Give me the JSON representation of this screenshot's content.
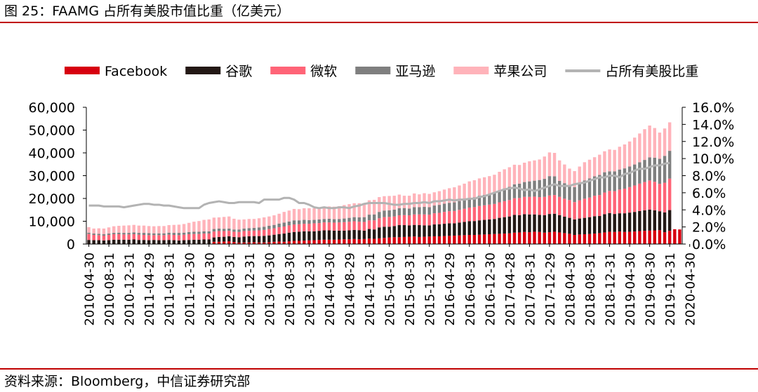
{
  "figure": {
    "title": "图 25：FAAMG 占所有美股市值比重（亿美元）",
    "source": "资料来源：Bloomberg，中信证券研究部"
  },
  "colors": {
    "facebook": "#d7000f",
    "google": "#231815",
    "microsoft": "#ff6477",
    "amazon": "#7f7f7f",
    "apple": "#ffb3ba",
    "share_line": "#b3b3b3",
    "rule": "#c00000"
  },
  "chart_data": {
    "type": "bar",
    "stacked": true,
    "title": "FAAMG 占所有美股市值比重（亿美元）",
    "xlabel": "",
    "ylabel": "",
    "ylim": [
      0,
      60000
    ],
    "y2lim": [
      0,
      0.16
    ],
    "y_ticks": [
      "0",
      "10,000",
      "20,000",
      "30,000",
      "40,000",
      "50,000",
      "60,000"
    ],
    "y2_ticks": [
      "0.0%",
      "2.0%",
      "4.0%",
      "6.0%",
      "8.0%",
      "10.0%",
      "12.0%",
      "14.0%",
      "16.0%"
    ],
    "x_tick_labels": [
      "2010-04-30",
      "2010-08-31",
      "2010-12-31",
      "2011-04-29",
      "2011-08-31",
      "2011-12-30",
      "2012-04-30",
      "2012-08-31",
      "2012-12-31",
      "2013-04-30",
      "2013-08-30",
      "2013-12-31",
      "2014-04-30",
      "2014-08-29",
      "2014-12-31",
      "2015-04-30",
      "2015-08-31",
      "2015-12-31",
      "2016-04-29",
      "2016-08-31",
      "2016-12-30",
      "2017-04-28",
      "2017-08-31",
      "2017-12-29",
      "2018-04-30",
      "2018-08-31",
      "2018-12-31",
      "2019-04-30",
      "2019-08-30",
      "2019-12-31",
      "2020-04-30"
    ],
    "months_per_tick": 4,
    "legend_position": "top",
    "series": [
      {
        "name": "Facebook",
        "key": "facebook",
        "kind": "bar",
        "values": [
          0,
          0,
          0,
          0,
          0,
          0,
          0,
          0,
          0,
          0,
          0,
          0,
          0,
          0,
          0,
          0,
          0,
          0,
          0,
          0,
          0,
          0,
          0,
          0,
          0,
          1000,
          1000,
          1100,
          1200,
          900,
          600,
          700,
          700,
          800,
          700,
          700,
          800,
          1000,
          1100,
          1000,
          1200,
          1400,
          1400,
          1500,
          1600,
          1700,
          1800,
          1900,
          1900,
          1900,
          2000,
          2100,
          2100,
          2200,
          2100,
          2200,
          2400,
          2300,
          2500,
          2700,
          2900,
          3000,
          3000,
          3100,
          3200,
          3300,
          3100,
          3200,
          3300,
          3400,
          3400,
          3500,
          3600,
          3700,
          3800,
          3900,
          4000,
          4000,
          4100,
          4200,
          4300,
          4400,
          4500,
          4600,
          4700,
          5000,
          5100,
          5300,
          5200,
          5400,
          5300,
          5000,
          5200,
          5400,
          5100,
          4800,
          4500,
          4000,
          4200,
          4300,
          4400,
          4600,
          4800,
          5100,
          5400,
          5300,
          5500,
          5300,
          5400,
          5500,
          5700,
          5800,
          5900,
          6000,
          6100,
          5200,
          5800,
          6500,
          6400
        ]
      },
      {
        "name": "谷歌",
        "key": "google",
        "kind": "bar",
        "values": [
          1800,
          1700,
          1700,
          1600,
          1700,
          1900,
          1900,
          1900,
          1900,
          2000,
          1800,
          1800,
          1700,
          1800,
          1700,
          1700,
          1800,
          1700,
          1600,
          1700,
          1800,
          1900,
          1900,
          2000,
          2000,
          1900,
          2100,
          2100,
          2200,
          2200,
          2400,
          2600,
          2700,
          2700,
          2800,
          2900,
          3000,
          3100,
          3300,
          3600,
          3800,
          3900,
          4000,
          4100,
          4000,
          3900,
          4000,
          4100,
          4100,
          4000,
          3900,
          3800,
          3900,
          4000,
          4000,
          3700,
          4200,
          4100,
          4800,
          4900,
          4700,
          4900,
          5300,
          5200,
          5000,
          5100,
          5200,
          5000,
          4900,
          5200,
          5300,
          5400,
          5500,
          5400,
          5600,
          5800,
          6000,
          6100,
          6300,
          6400,
          6500,
          6600,
          7000,
          7200,
          7400,
          7800,
          7600,
          7800,
          7800,
          7600,
          7500,
          7700,
          8000,
          7900,
          7600,
          7200,
          7000,
          6800,
          7000,
          7200,
          7400,
          7600,
          7500,
          8000,
          8200,
          7900,
          8000,
          8200,
          8400,
          8600,
          8800,
          9000,
          9200,
          8800,
          8300,
          8700,
          9100
        ]
      },
      {
        "name": "微软",
        "key": "microsoft",
        "kind": "bar",
        "values": [
          2600,
          2300,
          2200,
          2100,
          2300,
          2400,
          2400,
          2300,
          2300,
          2300,
          2300,
          2200,
          2200,
          2100,
          2200,
          2200,
          2300,
          2300,
          2300,
          2400,
          2500,
          2500,
          2500,
          2600,
          2600,
          2600,
          2600,
          2500,
          2400,
          2300,
          2300,
          2400,
          2400,
          2400,
          2500,
          2600,
          2800,
          2800,
          3000,
          3100,
          3200,
          3300,
          3300,
          3300,
          3300,
          3500,
          3400,
          3500,
          3500,
          3500,
          3600,
          3700,
          3800,
          3800,
          3700,
          3800,
          3800,
          4000,
          4000,
          4200,
          4300,
          4200,
          4300,
          4400,
          4400,
          4600,
          4700,
          4800,
          4700,
          4900,
          5000,
          5200,
          5300,
          5400,
          5600,
          5800,
          6000,
          6100,
          6300,
          6400,
          6500,
          6600,
          6800,
          7000,
          7200,
          7300,
          7500,
          7600,
          7700,
          7800,
          7800,
          8000,
          8100,
          8200,
          8000,
          7900,
          7800,
          7600,
          8000,
          8400,
          8600,
          9000,
          9200,
          9500,
          9700,
          10000,
          10400,
          10800,
          11200,
          11600,
          12000,
          12400,
          12800,
          12500,
          12000,
          13000,
          13800
        ]
      },
      {
        "name": "亚马逊",
        "key": "amazon",
        "kind": "bar",
        "values": [
          600,
          600,
          600,
          600,
          600,
          600,
          700,
          700,
          700,
          800,
          800,
          900,
          900,
          800,
          800,
          800,
          900,
          900,
          1000,
          900,
          1000,
          1000,
          1000,
          1000,
          1000,
          1100,
          1100,
          1000,
          1000,
          1000,
          1100,
          1100,
          1200,
          1200,
          1300,
          1400,
          1400,
          1500,
          1600,
          1700,
          1700,
          1800,
          1700,
          1700,
          1600,
          1500,
          1600,
          1500,
          1600,
          1500,
          1500,
          1600,
          1700,
          1800,
          1900,
          2100,
          2500,
          2600,
          2800,
          2900,
          2900,
          3000,
          3100,
          3100,
          3000,
          3200,
          3200,
          3300,
          3300,
          3400,
          3500,
          3600,
          3700,
          3800,
          3900,
          4000,
          4200,
          4300,
          4500,
          4600,
          4700,
          4900,
          5200,
          5600,
          5800,
          6100,
          6300,
          6500,
          6800,
          7000,
          7500,
          7900,
          8500,
          8200,
          7000,
          6800,
          6400,
          6600,
          7200,
          8000,
          8400,
          8500,
          8800,
          8900,
          8600,
          8700,
          8800,
          8900,
          9000,
          9200,
          9400,
          9700,
          10100,
          10600,
          11000,
          11800,
          12200
        ]
      },
      {
        "name": "苹果公司",
        "key": "apple",
        "kind": "bar",
        "values": [
          2400,
          2200,
          2400,
          2500,
          2700,
          2900,
          3000,
          3200,
          3300,
          3300,
          3200,
          3200,
          3100,
          3100,
          3200,
          3200,
          3300,
          3500,
          3600,
          3800,
          4000,
          4400,
          4700,
          5000,
          5200,
          5000,
          4900,
          5200,
          5300,
          4700,
          4300,
          4000,
          4000,
          3900,
          4000,
          4100,
          4100,
          4200,
          4300,
          4700,
          4800,
          5000,
          4900,
          5100,
          5200,
          5100,
          5200,
          5300,
          5400,
          5500,
          5600,
          5900,
          6000,
          6100,
          6200,
          6000,
          6300,
          6400,
          6500,
          6300,
          6300,
          6100,
          6000,
          5400,
          5600,
          6000,
          5600,
          6000,
          5800,
          5800,
          6000,
          6200,
          6400,
          6600,
          6800,
          7000,
          7300,
          7500,
          7600,
          7700,
          7800,
          7900,
          8200,
          8400,
          8600,
          8600,
          8200,
          8500,
          8800,
          8900,
          9000,
          9800,
          10400,
          10300,
          9000,
          8200,
          7400,
          7000,
          7600,
          8000,
          8200,
          8400,
          8900,
          9200,
          9600,
          9400,
          10000,
          10500,
          11000,
          11800,
          12600,
          13500,
          14000,
          13000,
          11500,
          12000,
          12500
        ]
      },
      {
        "name": "占所有美股比重",
        "key": "share_line",
        "kind": "line",
        "axis": "right",
        "values": [
          0.045,
          0.045,
          0.045,
          0.044,
          0.044,
          0.044,
          0.044,
          0.043,
          0.044,
          0.045,
          0.046,
          0.047,
          0.047,
          0.046,
          0.046,
          0.045,
          0.045,
          0.044,
          0.043,
          0.042,
          0.042,
          0.042,
          0.042,
          0.046,
          0.048,
          0.049,
          0.05,
          0.049,
          0.048,
          0.048,
          0.049,
          0.049,
          0.049,
          0.049,
          0.048,
          0.052,
          0.052,
          0.052,
          0.052,
          0.054,
          0.054,
          0.052,
          0.048,
          0.048,
          0.046,
          0.043,
          0.042,
          0.043,
          0.042,
          0.042,
          0.043,
          0.043,
          0.042,
          0.044,
          0.045,
          0.047,
          0.048,
          0.048,
          0.048,
          0.048,
          0.047,
          0.046,
          0.046,
          0.047,
          0.047,
          0.048,
          0.048,
          0.049,
          0.048,
          0.05,
          0.05,
          0.051,
          0.052,
          0.051,
          0.052,
          0.052,
          0.053,
          0.053,
          0.055,
          0.056,
          0.058,
          0.06,
          0.062,
          0.064,
          0.065,
          0.066,
          0.065,
          0.063,
          0.064,
          0.062,
          0.064,
          0.066,
          0.068,
          0.07,
          0.068,
          0.068,
          0.068,
          0.07,
          0.071,
          0.072,
          0.074,
          0.076,
          0.078,
          0.078,
          0.08,
          0.08,
          0.078,
          0.082,
          0.083,
          0.086,
          0.088,
          0.088,
          0.09,
          0.092,
          0.092,
          0.094,
          0.095
        ]
      }
    ]
  }
}
